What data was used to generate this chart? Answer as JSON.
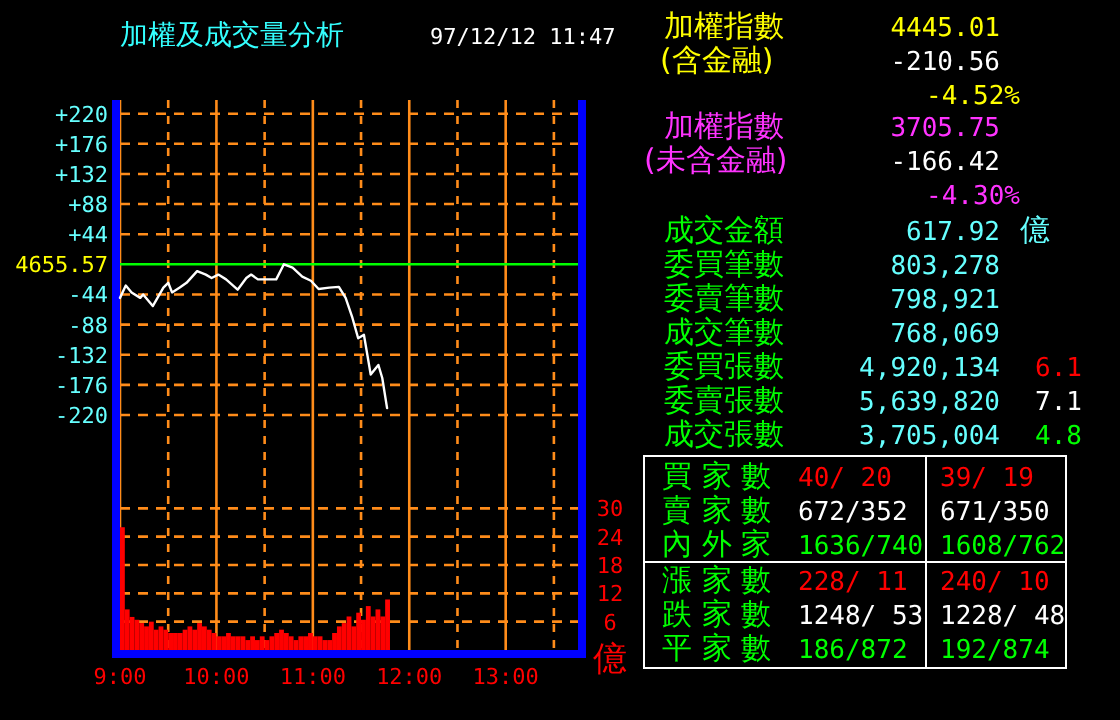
{
  "chart_data": [
    {
      "type": "line",
      "title": "加權及成交量分析",
      "subtitle": "97/12/12 11:47",
      "xlim": [
        9,
        13.75
      ],
      "xticks": [
        {
          "value": 9,
          "label": null
        },
        {
          "value": 9.5,
          "label": null
        },
        {
          "value": 10,
          "label": null
        },
        {
          "value": 10.5,
          "label": null
        },
        {
          "value": 11,
          "label": null
        },
        {
          "value": 11.5,
          "label": null
        },
        {
          "value": 12,
          "label": null
        },
        {
          "value": 12.5,
          "label": null
        },
        {
          "value": 13,
          "label": null
        },
        {
          "value": 13.5,
          "label": null
        }
      ],
      "ylim": [
        -315,
        240
      ],
      "yticks": [
        {
          "value": 220,
          "label": "+220"
        },
        {
          "value": 176,
          "label": "+176"
        },
        {
          "value": 132,
          "label": "+132"
        },
        {
          "value": 88,
          "label": "+88"
        },
        {
          "value": 44,
          "label": "+44"
        },
        {
          "value": -44,
          "label": "-44"
        },
        {
          "value": -88,
          "label": "-88"
        },
        {
          "value": -132,
          "label": "-132"
        },
        {
          "value": -176,
          "label": "-176"
        },
        {
          "value": -220,
          "label": "-220"
        }
      ],
      "ref_lines": [
        {
          "axis": "y",
          "value": 0,
          "color": "#00ff00"
        }
      ],
      "annotations": [
        "4655.57"
      ],
      "grid": true,
      "tick_labels": "y",
      "series": [
        {
          "color": "#ffffff",
          "x": [
            9,
            9.06,
            9.12,
            9.21,
            9.24,
            9.34,
            9.45,
            9.5,
            9.54,
            9.62,
            9.69,
            9.8,
            9.89,
            9.95,
            10.02,
            10.1,
            10.22,
            10.31,
            10.36,
            10.43,
            10.62,
            10.7,
            10.79,
            10.89,
            10.98,
            11.06,
            11.17,
            11.27,
            11.34,
            11.41,
            11.47,
            11.53,
            11.6,
            11.65,
            11.68,
            11.72,
            11.77
          ],
          "values": [
            -49,
            -31,
            -41,
            -49,
            -44,
            -61,
            -34,
            -27,
            -41,
            -34,
            -27,
            -10,
            -15,
            -20,
            -15,
            -22,
            -37,
            -20,
            -15,
            -22,
            -22,
            0,
            -5,
            -18,
            -24,
            -36,
            -34,
            -33,
            -49,
            -78,
            -108,
            -103,
            -161,
            -152,
            -147,
            -166,
            -210
          ]
        }
      ]
    },
    {
      "type": "bar",
      "ylabel": "億",
      "xlim": [
        9,
        13.75
      ],
      "xticks": [
        {
          "value": 9,
          "label": "9:00"
        },
        {
          "value": 9.5,
          "label": null
        },
        {
          "value": 10,
          "label": "10:00"
        },
        {
          "value": 10.5,
          "label": null
        },
        {
          "value": 11,
          "label": "11:00"
        },
        {
          "value": 11.5,
          "label": null
        },
        {
          "value": 12,
          "label": "12:00"
        },
        {
          "value": 12.5,
          "label": null
        },
        {
          "value": 13,
          "label": "13:00"
        },
        {
          "value": 13.5,
          "label": null
        }
      ],
      "ylim": [
        0,
        36
      ],
      "yticks": [
        6,
        12,
        18,
        24,
        30
      ],
      "grid": true,
      "series": [
        {
          "color": "#ff0000",
          "x": [
            9,
            9.05,
            9.1,
            9.15,
            9.2,
            9.25,
            9.3,
            9.35,
            9.4,
            9.45,
            9.5,
            9.55,
            9.6,
            9.65,
            9.7,
            9.75,
            9.8,
            9.85,
            9.9,
            9.95,
            10,
            10.05,
            10.1,
            10.15,
            10.2,
            10.25,
            10.3,
            10.35,
            10.4,
            10.45,
            10.5,
            10.55,
            10.6,
            10.65,
            10.7,
            10.75,
            10.8,
            10.85,
            10.9,
            10.95,
            11,
            11.05,
            11.1,
            11.15,
            11.2,
            11.25,
            11.3,
            11.35,
            11.4,
            11.45,
            11.5,
            11.55,
            11.6,
            11.65,
            11.7,
            11.75
          ],
          "values": [
            26,
            8.6,
            7,
            6.4,
            5.7,
            5,
            6,
            4.3,
            5,
            4.3,
            3.6,
            3.6,
            3.6,
            4.3,
            5,
            4.3,
            5.7,
            5,
            4.3,
            3.6,
            2.9,
            2.9,
            3.6,
            2.9,
            2.9,
            2.9,
            2.1,
            2.9,
            2.1,
            2.9,
            2.1,
            2.9,
            3.6,
            4.3,
            3.6,
            2.9,
            2.1,
            2.9,
            2.9,
            3.6,
            2.9,
            2.9,
            2.1,
            2.1,
            3.6,
            5,
            5.7,
            7.1,
            5,
            7.9,
            6.4,
            9.3,
            7.1,
            8.6,
            7.1,
            10.7
          ]
        }
      ]
    },
    {
      "type": "other",
      "annotations": [
        "加權指數",
        "4445.01",
        "(含金融)",
        "-210.56",
        "-4.52%",
        "加權指數",
        "3705.75",
        "(未含金融)",
        "-166.42",
        "-4.30%",
        "成交金額",
        "617.92",
        "億",
        "委買筆數",
        "803,278",
        "委賣筆數",
        "798,921",
        "成交筆數",
        "768,069",
        "委買張數",
        "4,920,134",
        "6.1",
        "委賣張數",
        "5,639,820",
        "7.1",
        "成交張數",
        "3,705,004",
        "4.8",
        "買 家 數",
        "40/ 20",
        "39/ 19",
        "賣 家 數",
        "672/352",
        "671/350",
        "內 外 家",
        "1636/740",
        "1608/762",
        "漲 家 數",
        "228/ 11",
        "240/ 10",
        "跌 家 數",
        "1248/ 53",
        "1228/ 48",
        "平 家 數",
        "186/872",
        "192/874"
      ]
    }
  ]
}
